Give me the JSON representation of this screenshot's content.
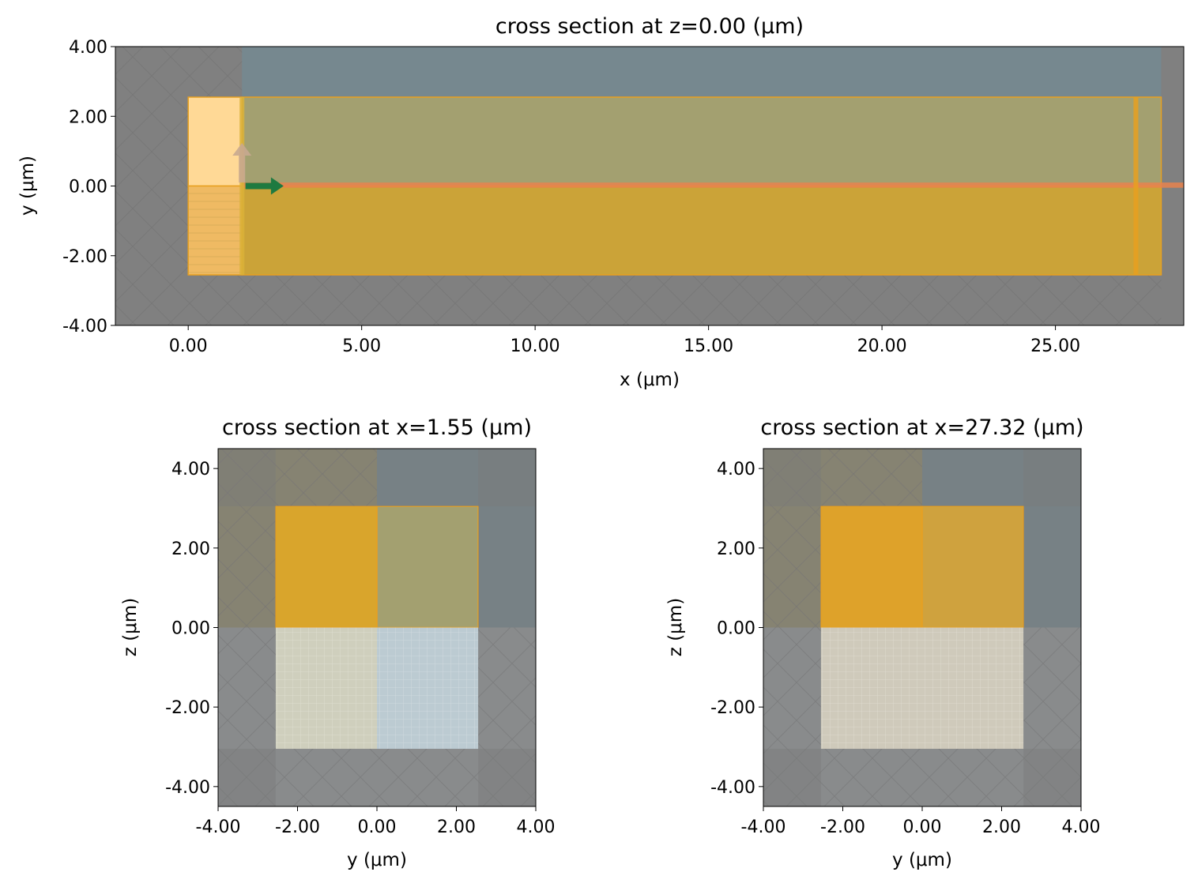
{
  "chart_data": [
    {
      "type": "cross_section",
      "title": "cross section at z=0.00 (μm)",
      "xlabel": "x (μm)",
      "ylabel": "y (μm)",
      "xlim": [
        -2.1,
        28.7
      ],
      "ylim": [
        -4.0,
        4.0
      ],
      "xticks": [
        0,
        5,
        10,
        15,
        20,
        25
      ],
      "xtick_labels": [
        "0.00",
        "5.00",
        "10.00",
        "15.00",
        "20.00",
        "25.00"
      ],
      "yticks": [
        4,
        2,
        0,
        -2,
        -4
      ],
      "ytick_labels": [
        "4.00",
        "2.00",
        "0.00",
        "-2.00",
        "-4.00"
      ],
      "regions": [
        {
          "name": "pml-top",
          "x": [
            -2.1,
            28.7
          ],
          "y": [
            2.55,
            4.0
          ],
          "color": "#808080",
          "hatch": true
        },
        {
          "name": "pml-bottom",
          "x": [
            -2.1,
            28.7
          ],
          "y": [
            -4.0,
            -2.55
          ],
          "color": "#808080",
          "hatch": true
        },
        {
          "name": "pml-left",
          "x": [
            -2.1,
            0.0
          ],
          "y": [
            -4.0,
            4.0
          ],
          "color": "#808080",
          "hatch": true
        },
        {
          "name": "pml-right",
          "x": [
            28.05,
            28.7
          ],
          "y": [
            -4.0,
            4.0
          ],
          "color": "#808080",
          "hatch": false
        },
        {
          "name": "cladding",
          "x": [
            1.55,
            28.05
          ],
          "y": [
            0.0,
            4.0
          ],
          "color": "#76888f"
        },
        {
          "name": "slab-upper",
          "x": [
            1.55,
            28.05
          ],
          "y": [
            0.0,
            2.55
          ],
          "color": "#a3a070"
        },
        {
          "name": "slab-lower",
          "x": [
            1.55,
            28.05
          ],
          "y": [
            -2.55,
            0.0
          ],
          "color": "#cba338"
        },
        {
          "name": "input-region-upper",
          "x": [
            0.0,
            1.55
          ],
          "y": [
            0.0,
            2.55
          ],
          "color": "#ffd996"
        },
        {
          "name": "input-region-lower",
          "x": [
            0.0,
            1.55
          ],
          "y": [
            -2.55,
            0.0
          ],
          "color": "#efba63"
        }
      ],
      "markers": [
        {
          "name": "source-plane",
          "x": 1.55,
          "color": "#d9b23a"
        },
        {
          "name": "monitor-plane",
          "x": 27.32,
          "color": "#e8a020"
        }
      ],
      "beam": {
        "x": [
          1.55,
          28.7
        ],
        "y": [
          -0.05,
          0.1
        ],
        "color": "#e8824e"
      },
      "arrows": [
        {
          "name": "polarization-arrow",
          "x": 1.55,
          "y_from": 0.1,
          "y_to": 1.1,
          "color": "#c8a890"
        },
        {
          "name": "direction-arrow",
          "x_from": 1.65,
          "x_to": 2.75,
          "y": 0.0,
          "color": "#1e7a40"
        }
      ]
    },
    {
      "type": "cross_section",
      "title": "cross section at x=1.55 (μm)",
      "xlabel": "y (μm)",
      "ylabel": "z (μm)",
      "xlim": [
        -4.0,
        4.0
      ],
      "ylim": [
        -4.5,
        4.5
      ],
      "xticks": [
        -4,
        -2,
        0,
        2,
        4
      ],
      "xtick_labels": [
        "-4.00",
        "-2.00",
        "0.00",
        "2.00",
        "4.00"
      ],
      "yticks": [
        4,
        2,
        0,
        -2,
        -4
      ],
      "ytick_labels": [
        "4.00",
        "2.00",
        "0.00",
        "-2.00",
        "-4.00"
      ],
      "regions": [
        {
          "name": "cladding-left",
          "x": [
            -4.0,
            0.0
          ],
          "y": [
            0.0,
            4.5
          ],
          "color": "#908a6c",
          "hatch": true
        },
        {
          "name": "cladding-right",
          "x": [
            0.0,
            4.0
          ],
          "y": [
            0.0,
            4.5
          ],
          "color": "#76888f"
        },
        {
          "name": "substrate",
          "x": [
            -4.0,
            4.0
          ],
          "y": [
            -4.5,
            0.0
          ],
          "color": "#969a9c",
          "hatch": true
        },
        {
          "name": "core-left",
          "x": [
            -2.55,
            0.0
          ],
          "y": [
            0.0,
            3.05
          ],
          "color": "#d9a52c"
        },
        {
          "name": "core-right",
          "x": [
            0.0,
            2.55
          ],
          "y": [
            0.0,
            3.05
          ],
          "color": "#a3a070"
        },
        {
          "name": "buffer-left",
          "x": [
            -2.55,
            0.0
          ],
          "y": [
            -3.05,
            0.0
          ],
          "color": "#cfcfbd",
          "grid": true
        },
        {
          "name": "buffer-right",
          "x": [
            0.0,
            2.55
          ],
          "y": [
            -3.05,
            0.0
          ],
          "color": "#bccbd2",
          "grid": true
        },
        {
          "name": "pml-band-top",
          "x": [
            -4.0,
            4.0
          ],
          "y": [
            3.05,
            4.5
          ],
          "color": "#7a7a7a"
        },
        {
          "name": "pml-band-bottom",
          "x": [
            -4.0,
            4.0
          ],
          "y": [
            -4.5,
            -3.05
          ],
          "color": "#7a7a7a"
        },
        {
          "name": "pml-band-left",
          "x": [
            -4.0,
            -2.55
          ],
          "y": [
            -4.5,
            4.5
          ],
          "color": "#7a7a7a"
        },
        {
          "name": "pml-band-right",
          "x": [
            2.55,
            4.0
          ],
          "y": [
            -4.5,
            4.5
          ],
          "color": "#7a7a7a"
        }
      ]
    },
    {
      "type": "cross_section",
      "title": "cross section at x=27.32 (μm)",
      "xlabel": "y (μm)",
      "ylabel": "z (μm)",
      "xlim": [
        -4.0,
        4.0
      ],
      "ylim": [
        -4.5,
        4.5
      ],
      "xticks": [
        -4,
        -2,
        0,
        2,
        4
      ],
      "xtick_labels": [
        "-4.00",
        "-2.00",
        "0.00",
        "2.00",
        "4.00"
      ],
      "yticks": [
        4,
        2,
        0,
        -2,
        -4
      ],
      "ytick_labels": [
        "4.00",
        "2.00",
        "0.00",
        "-2.00",
        "-4.00"
      ],
      "regions": [
        {
          "name": "cladding-left",
          "x": [
            -4.0,
            0.0
          ],
          "y": [
            0.0,
            4.5
          ],
          "color": "#908a6c",
          "hatch": true
        },
        {
          "name": "cladding-right",
          "x": [
            0.0,
            4.0
          ],
          "y": [
            0.0,
            4.5
          ],
          "color": "#76888f"
        },
        {
          "name": "substrate",
          "x": [
            -4.0,
            4.0
          ],
          "y": [
            -4.5,
            0.0
          ],
          "color": "#969a9c",
          "hatch": true
        },
        {
          "name": "core-left",
          "x": [
            -2.55,
            0.0
          ],
          "y": [
            0.0,
            3.05
          ],
          "color": "#dea22a"
        },
        {
          "name": "core-right",
          "x": [
            0.0,
            2.55
          ],
          "y": [
            0.0,
            3.05
          ],
          "color": "#cfa23e"
        },
        {
          "name": "buffer",
          "x": [
            -2.55,
            2.55
          ],
          "y": [
            -3.05,
            0.0
          ],
          "color": "#cfcabb",
          "grid": true
        },
        {
          "name": "pml-band-top",
          "x": [
            -4.0,
            4.0
          ],
          "y": [
            3.05,
            4.5
          ],
          "color": "#7a7a7a"
        },
        {
          "name": "pml-band-bottom",
          "x": [
            -4.0,
            4.0
          ],
          "y": [
            -4.5,
            -3.05
          ],
          "color": "#7a7a7a"
        },
        {
          "name": "pml-band-left",
          "x": [
            -4.0,
            -2.55
          ],
          "y": [
            -4.5,
            4.5
          ],
          "color": "#7a7a7a"
        },
        {
          "name": "pml-band-right",
          "x": [
            2.55,
            4.0
          ],
          "y": [
            -4.5,
            4.5
          ],
          "color": "#7a7a7a"
        }
      ]
    }
  ]
}
